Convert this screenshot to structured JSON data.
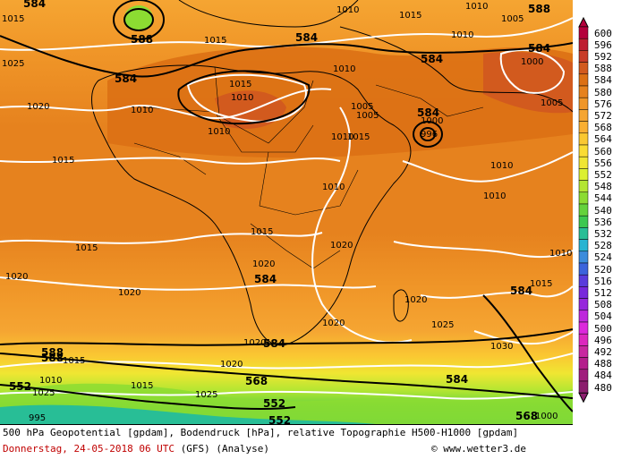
{
  "legend": {
    "values": [
      "600",
      "596",
      "592",
      "588",
      "584",
      "580",
      "576",
      "572",
      "568",
      "564",
      "560",
      "556",
      "552",
      "548",
      "544",
      "540",
      "536",
      "532",
      "528",
      "524",
      "520",
      "516",
      "512",
      "508",
      "504",
      "500",
      "496",
      "492",
      "488",
      "484",
      "480"
    ],
    "colors": [
      "#b4003c",
      "#be1e32",
      "#c83c28",
      "#d25a1e",
      "#dc7014",
      "#e6821e",
      "#f09628",
      "#f5a532",
      "#faaf32",
      "#fac832",
      "#fadc32",
      "#f0e632",
      "#dcf032",
      "#b4e632",
      "#8cdc32",
      "#64d23c",
      "#3cc850",
      "#28be96",
      "#28b4d2",
      "#3c8cdc",
      "#3c64dc",
      "#5a3cdc",
      "#7828dc",
      "#9628dc",
      "#be28dc",
      "#dc28dc",
      "#dc28be",
      "#c828a0",
      "#b41e8c",
      "#a01e7d",
      "#8c1e6e"
    ]
  },
  "map": {
    "geopotential_labels": [
      "584",
      "588",
      "588",
      "584",
      "584",
      "584",
      "584",
      "584",
      "584",
      "584",
      "584",
      "584",
      "588",
      "588",
      "568",
      "552",
      "552",
      "568",
      "552"
    ],
    "pressure_labels": [
      "1015",
      "1025",
      "1020",
      "1015",
      "1010",
      "1010",
      "1015",
      "1010",
      "1010",
      "1005",
      "1005",
      "1010",
      "1015",
      "1015",
      "1010",
      "1005",
      "1010",
      "1010",
      "1015",
      "1010",
      "1020",
      "1020",
      "1015",
      "1015",
      "1020",
      "1020",
      "1025",
      "1020",
      "1030",
      "1015",
      "1020",
      "1010",
      "1020",
      "1025",
      "1015",
      "1020",
      "1025",
      "1010",
      "1015",
      "995",
      "1005",
      "1010",
      "1000",
      "1010",
      "1000",
      "996",
      "1000"
    ]
  },
  "info": {
    "title": "500 hPa Geopotential [gpdam], Bodendruck [hPa], relative Topographie H500-H1000 [gpdam]",
    "date": "Donnerstag, 24-05-2018  06 UTC",
    "run": "(GFS)  (Analyse)",
    "copyright": "© www.wetter3.de"
  }
}
